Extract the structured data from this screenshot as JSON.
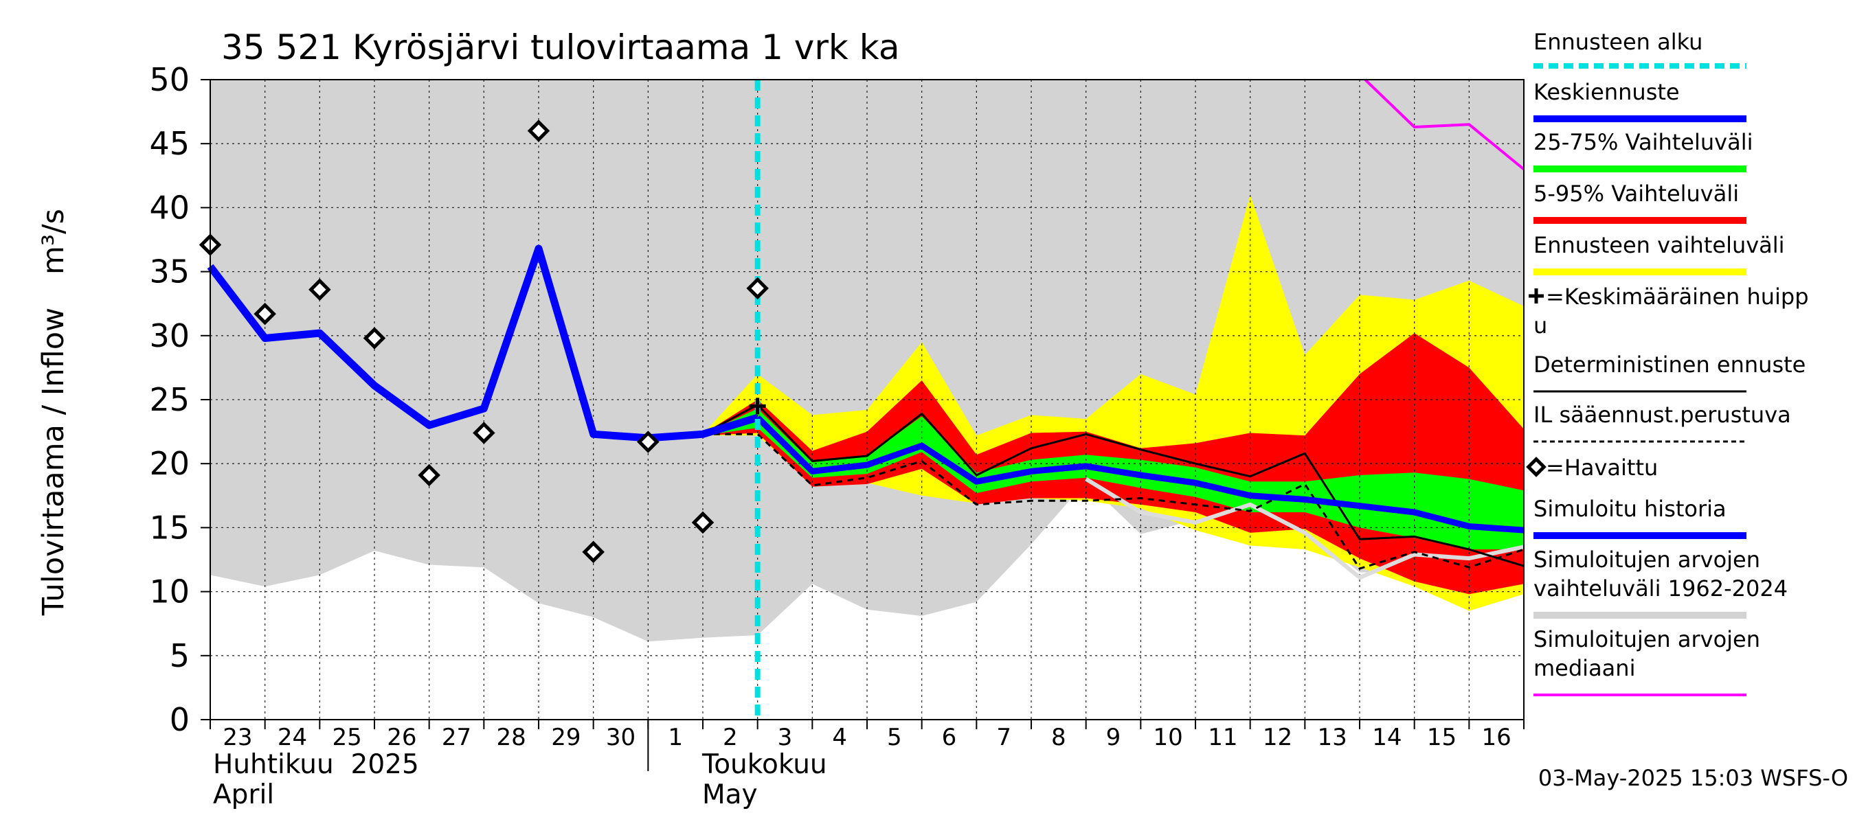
{
  "chart_data": {
    "type": "line",
    "title": "35 521 Kyrösjärvi tulovirtaama 1 vrk ka",
    "ylabel": "Tulovirtaama / Inflow",
    "yunit": "m³/s",
    "ylim": [
      0,
      50
    ],
    "yticks": [
      0,
      5,
      10,
      15,
      20,
      25,
      30,
      35,
      40,
      45,
      50
    ],
    "xlim": [
      0,
      24
    ],
    "day_labels": [
      "23",
      "24",
      "25",
      "26",
      "27",
      "28",
      "29",
      "30",
      "1",
      "2",
      "3",
      "4",
      "5",
      "6",
      "7",
      "8",
      "9",
      "10",
      "11",
      "12",
      "13",
      "14",
      "15",
      "16"
    ],
    "month_labels": [
      {
        "fi": "Huhtikuu  2025",
        "en": "April",
        "at": 0
      },
      {
        "fi": "Toukokuu",
        "en": "May",
        "at": 9
      }
    ],
    "month_separator_x": 8,
    "forecast_start_x": 10,
    "timestamp": "03-May-2025 15:03 WSFS-O",
    "colors": {
      "history_range": "#d3d3d3",
      "forecast_range": "#ffff00",
      "band_5_95": "#ff0000",
      "band_25_75": "#00ff00",
      "mean_forecast": "#0000ff",
      "simulated_history": "#0000ff",
      "median": "#ff00ff",
      "forecast_start": "#00e0e0",
      "deterministic": "#000000",
      "observed": "#000000"
    },
    "series": {
      "history_range": {
        "x": [
          0,
          1,
          2,
          3,
          4,
          5,
          6,
          7,
          8,
          9,
          10,
          11,
          12,
          13,
          14,
          15,
          16,
          17,
          18,
          19,
          20,
          21,
          22,
          23,
          24
        ],
        "upper": [
          50,
          50,
          50,
          50,
          50,
          50,
          50,
          50,
          50,
          50,
          50,
          50,
          50,
          50,
          50,
          50,
          50,
          50,
          50,
          50,
          50,
          50,
          50,
          50,
          50
        ],
        "lower": [
          11.3,
          10.4,
          11.3,
          13.2,
          12.1,
          11.9,
          9.1,
          8,
          6.1,
          6.4,
          6.6,
          10.6,
          8.6,
          8.1,
          9.2,
          13.7,
          18.6,
          14.5,
          15.6,
          16.7,
          15,
          11.5,
          11.6,
          12.3,
          13.5
        ]
      },
      "forecast_range": {
        "x": [
          9,
          10,
          11,
          12,
          13,
          14,
          15,
          16,
          17,
          18,
          19,
          20,
          21,
          22,
          23,
          24
        ],
        "upper": [
          22.3,
          27,
          23.8,
          24.2,
          29.5,
          22.2,
          23.8,
          23.5,
          27,
          25.4,
          41,
          28.5,
          33.2,
          32.8,
          34.3,
          32.3
        ],
        "lower": [
          22.2,
          22.2,
          18.4,
          18.5,
          17.5,
          16.9,
          17.3,
          17.1,
          16.5,
          14.8,
          13.6,
          13.3,
          11.9,
          10.4,
          8.5,
          9.8
        ]
      },
      "band_5_95": {
        "x": [
          9,
          10,
          11,
          12,
          13,
          14,
          15,
          16,
          17,
          18,
          19,
          20,
          21,
          22,
          23,
          24
        ],
        "upper": [
          22.3,
          25,
          21,
          22.5,
          26.5,
          20.7,
          22.4,
          22.5,
          21.2,
          21.6,
          22.4,
          22.2,
          27,
          30.2,
          27.5,
          22.7
        ],
        "lower": [
          22.2,
          22.4,
          18.2,
          18.4,
          19.6,
          16.8,
          17.3,
          17.3,
          16.8,
          16.2,
          14.6,
          14.9,
          12.6,
          10.8,
          9.8,
          10.6
        ]
      },
      "band_25_75": {
        "x": [
          9,
          10,
          11,
          12,
          13,
          14,
          15,
          16,
          17,
          18,
          19,
          20,
          21,
          22,
          23,
          24
        ],
        "upper": [
          22.3,
          24.3,
          20.1,
          20.6,
          23.7,
          19.3,
          20.3,
          20.7,
          20.3,
          19.7,
          18.6,
          18.6,
          19.1,
          19.3,
          18.8,
          17.9
        ],
        "lower": [
          22.2,
          22.8,
          18.9,
          19.2,
          20.9,
          17.7,
          18.6,
          18.9,
          18.1,
          17.4,
          16.2,
          16.2,
          15,
          14.2,
          13.3,
          13.3
        ]
      },
      "simulated_history": {
        "x": [
          0,
          1,
          2,
          3,
          4,
          5,
          6,
          7,
          8,
          9,
          10
        ],
        "values": [
          35.4,
          29.8,
          30.2,
          26.1,
          23,
          24.3,
          36.8,
          22.3,
          22,
          22.3,
          23.6
        ]
      },
      "mean_forecast": {
        "x": [
          10,
          11,
          12,
          13,
          14,
          15,
          16,
          17,
          18,
          19,
          20,
          21,
          22,
          23,
          24
        ],
        "values": [
          23.6,
          19.4,
          19.9,
          21.4,
          18.6,
          19.4,
          19.8,
          19.1,
          18.5,
          17.5,
          17.2,
          16.7,
          16.2,
          15.1,
          14.8
        ]
      },
      "deterministic": {
        "x": [
          9,
          10,
          11,
          12,
          13,
          14,
          15,
          16,
          17,
          18,
          19,
          20,
          21,
          22,
          23,
          24
        ],
        "values": [
          22.3,
          24.6,
          20.2,
          20.6,
          23.9,
          19.1,
          21.2,
          22.3,
          21.1,
          20,
          19,
          20.8,
          14.1,
          14.3,
          13.3,
          12
        ]
      },
      "il_based": {
        "x": [
          9,
          10,
          11,
          12,
          13,
          14,
          15,
          16,
          17,
          18,
          19,
          20,
          21,
          22,
          23,
          24
        ],
        "values": [
          22.3,
          22.3,
          18.3,
          18.9,
          20.2,
          16.8,
          17.1,
          17.1,
          17.3,
          16.8,
          16.3,
          18.4,
          11.8,
          13.1,
          11.9,
          13.3
        ]
      },
      "median": {
        "x": [
          21.1,
          22,
          23,
          24
        ],
        "values": [
          50,
          46.3,
          46.5,
          43
        ]
      },
      "median_light": {
        "x": [
          16,
          17,
          18,
          19,
          20,
          21,
          22,
          23,
          24
        ],
        "values": [
          18.8,
          16.2,
          15.4,
          16.8,
          14.6,
          11.1,
          12.9,
          12.6,
          13.5
        ]
      },
      "observed": {
        "x": [
          0,
          1,
          2,
          3,
          4,
          5,
          6,
          7,
          8,
          9,
          10
        ],
        "values": [
          37.1,
          31.7,
          33.6,
          29.8,
          19.1,
          22.4,
          46,
          13.1,
          21.7,
          15.4,
          33.7
        ]
      },
      "mean_peak": {
        "x": 10,
        "value": 24.5
      }
    }
  },
  "legend": [
    {
      "id": "forecast-start",
      "label": "Ennusteen alku",
      "style": "dash",
      "color": "#00e0e0"
    },
    {
      "id": "mean-forecast",
      "label": "Keskiennuste",
      "style": "thick",
      "color": "#0000ff"
    },
    {
      "id": "band-25-75",
      "label": "25-75% Vaihteluväli",
      "style": "thick",
      "color": "#00ff00"
    },
    {
      "id": "band-5-95",
      "label": "5-95% Vaihteluväli",
      "style": "thick",
      "color": "#ff0000"
    },
    {
      "id": "forecast-range",
      "label": "Ennusteen vaihteluväli",
      "style": "thick",
      "color": "#ffff00"
    },
    {
      "id": "mean-peak",
      "label": "=Keskimääräinen huipp",
      "label2": "u",
      "style": "plus",
      "color": "#000000"
    },
    {
      "id": "deterministic",
      "label": "Deterministinen ennuste",
      "style": "thin",
      "color": "#000000"
    },
    {
      "id": "il-based",
      "label": "IL sääennust.perustuva",
      "style": "dotted",
      "color": "#000000"
    },
    {
      "id": "observed",
      "label": "=Havaittu",
      "style": "diamond",
      "color": "#000000"
    },
    {
      "id": "simulated-history",
      "label": "Simuloitu historia",
      "style": "thick",
      "color": "#0000ff"
    },
    {
      "id": "history-range",
      "label": "Simuloitujen arvojen",
      "label2": "vaihteluväli 1962-2024",
      "style": "thick",
      "color": "#d3d3d3"
    },
    {
      "id": "median",
      "label": "Simuloitujen arvojen",
      "label2": "mediaani",
      "style": "medium",
      "color": "#ff00ff"
    }
  ]
}
